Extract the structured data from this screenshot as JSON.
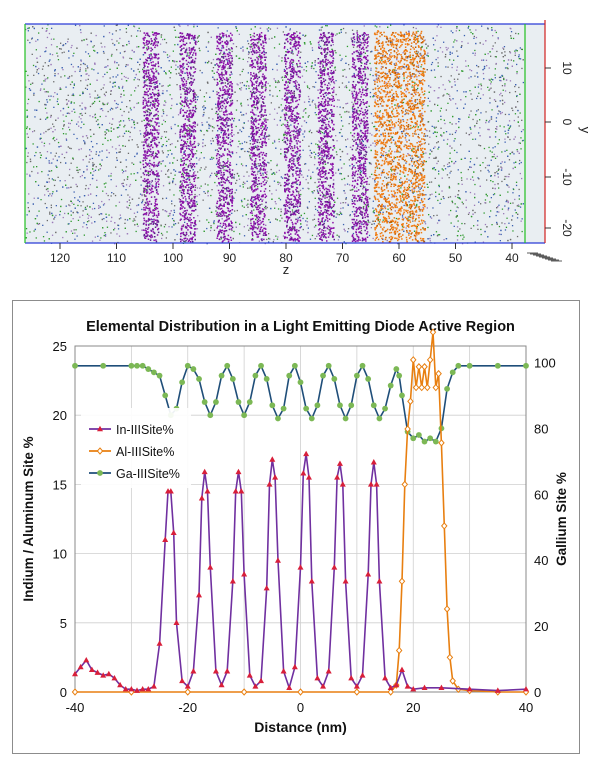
{
  "atom_probe": {
    "x_axis_title": "z",
    "x_ticks": [
      "120",
      "110",
      "100",
      "90",
      "80",
      "70",
      "60",
      "50",
      "40"
    ],
    "y_axis_title": "y",
    "y_ticks": [
      "10",
      "0",
      "-10",
      "-20"
    ],
    "colors": {
      "indium": "#8b10a8",
      "aluminum": "#f07a10",
      "gallium": "#2e9a2e",
      "nitrogen": "#3a5fb0"
    }
  },
  "chart_data": {
    "type": "line",
    "title": "Elemental Distribution in a Light Emitting Diode Active Region",
    "xlabel": "Distance (nm)",
    "ylabel_left": "Indium / Aluminum Site %",
    "ylabel_right": "Gallium Site %",
    "xlim": [
      -40,
      40
    ],
    "ylim_left": [
      0,
      25
    ],
    "ylim_right": [
      0,
      105
    ],
    "x_ticks": [
      "-40",
      "-20",
      "0",
      "20",
      "40"
    ],
    "y_ticks_left": [
      "0",
      "5",
      "10",
      "15",
      "20",
      "25"
    ],
    "y_ticks_right": [
      "0",
      "20",
      "40",
      "60",
      "80",
      "100"
    ],
    "grid": true,
    "legend_position": "left",
    "series": [
      {
        "name": "In-IIISite%",
        "axis": "left",
        "color": "#7030a0",
        "marker_color": "#d81f3a",
        "marker": "triangle",
        "x": [
          -40,
          -39,
          -38,
          -37,
          -36,
          -35,
          -34,
          -33,
          -32,
          -31,
          -30,
          -29,
          -28,
          -27,
          -26,
          -25,
          -24,
          -23.5,
          -23,
          -22.5,
          -22,
          -21,
          -20,
          -19,
          -18,
          -17.5,
          -17,
          -16.5,
          -16,
          -15,
          -14,
          -13,
          -12,
          -11.5,
          -11,
          -10.5,
          -10,
          -9,
          -8,
          -7,
          -6,
          -5.5,
          -5,
          -4.5,
          -4,
          -3,
          -2,
          -1,
          0,
          0.5,
          1,
          1.5,
          2,
          3,
          4,
          5,
          6,
          6.5,
          7,
          7.5,
          8,
          9,
          10,
          11,
          12,
          12.5,
          13,
          13.5,
          14,
          15,
          16,
          17,
          18,
          19,
          20,
          22,
          25,
          30,
          35,
          40
        ],
        "values": [
          1.3,
          1.8,
          2.3,
          1.6,
          1.4,
          1.2,
          1.3,
          1.0,
          0.5,
          0.2,
          0.2,
          0.1,
          0.2,
          0.2,
          0.4,
          3.5,
          11.0,
          14.5,
          14.5,
          11.5,
          5.0,
          0.8,
          0.4,
          1.5,
          7.0,
          14.0,
          15.9,
          14.5,
          9.0,
          1.5,
          0.5,
          1.5,
          8.0,
          14.5,
          15.9,
          14.5,
          8.5,
          1.2,
          0.4,
          0.8,
          7.5,
          15.0,
          16.8,
          15.5,
          9.5,
          1.5,
          0.3,
          1.8,
          9.0,
          15.8,
          17.2,
          15.5,
          8.0,
          1.0,
          0.4,
          1.5,
          9.0,
          15.5,
          16.5,
          15.0,
          8.0,
          1.0,
          0.4,
          1.2,
          8.5,
          15.0,
          16.6,
          15.0,
          8.0,
          1.0,
          0.3,
          0.5,
          1.6,
          0.4,
          0.2,
          0.3,
          0.3,
          0.2,
          0.1,
          0.2
        ]
      },
      {
        "name": "Al-IIISite%",
        "axis": "left",
        "color": "#e87f10",
        "marker_color": "#e87f10",
        "marker": "diamond",
        "x": [
          -40,
          -30,
          -20,
          -10,
          0,
          10,
          16,
          17,
          17.5,
          18,
          18.5,
          19,
          19.5,
          20,
          20.5,
          21,
          21.5,
          22,
          22.5,
          23,
          23.5,
          24,
          24.5,
          25,
          25.5,
          26,
          26.5,
          27,
          28,
          30,
          35,
          40
        ],
        "values": [
          0,
          0,
          0,
          0,
          0,
          0,
          0,
          0.5,
          3,
          8,
          15,
          19,
          21,
          24,
          22,
          23.5,
          22,
          23.5,
          22,
          24,
          26,
          22,
          23,
          18,
          12,
          6,
          2.5,
          0.8,
          0.2,
          0.1,
          0,
          0
        ]
      },
      {
        "name": "Ga-IIISite%",
        "axis": "right",
        "color": "#1f4e79",
        "marker_color": "#7cb855",
        "marker": "circle",
        "x": [
          -40,
          -35,
          -30,
          -29,
          -28,
          -27,
          -26,
          -25,
          -24,
          -23,
          -22,
          -21,
          -20,
          -19,
          -18,
          -17,
          -16,
          -15,
          -14,
          -13,
          -12,
          -11,
          -10,
          -9,
          -8,
          -7,
          -6,
          -5,
          -4,
          -3,
          -2,
          -1,
          0,
          1,
          2,
          3,
          4,
          5,
          6,
          7,
          8,
          9,
          10,
          11,
          12,
          13,
          14,
          15,
          16,
          17,
          17.5,
          18,
          19,
          20,
          21,
          22,
          23,
          24,
          25,
          26,
          27,
          28,
          30,
          35,
          40
        ],
        "values": [
          99,
          99,
          99,
          99,
          99,
          98,
          97,
          96,
          90,
          84,
          86,
          94,
          99,
          98,
          95,
          88,
          84,
          88,
          96,
          99,
          95,
          88,
          84,
          88,
          96,
          99,
          95,
          87,
          83,
          86,
          96,
          99,
          94,
          86,
          83,
          87,
          96,
          99,
          95,
          87,
          83,
          87,
          96,
          99,
          95,
          87,
          83,
          86,
          93,
          98,
          96,
          90,
          79,
          77,
          78,
          76,
          77,
          76,
          80,
          92,
          97,
          99,
          99,
          99,
          99
        ]
      }
    ]
  }
}
